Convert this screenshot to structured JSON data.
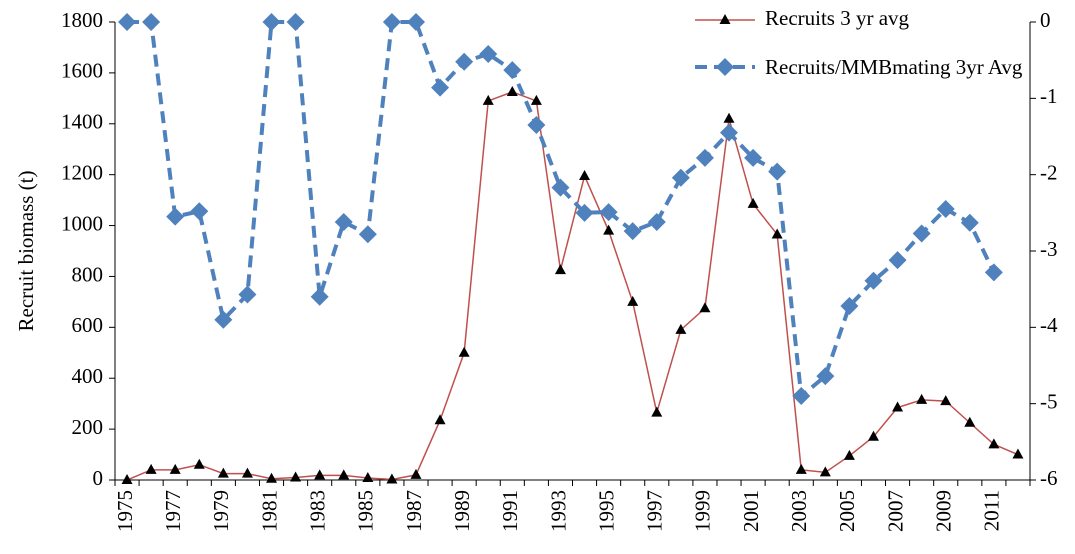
{
  "chart_data": {
    "type": "line",
    "ylabel": "Recruit biomass (t)",
    "categories": [
      "1975",
      null,
      "1977",
      null,
      "1979",
      null,
      "1981",
      null,
      "1983",
      null,
      "1985",
      null,
      "1987",
      null,
      "1989",
      null,
      "1991",
      null,
      "1993",
      null,
      "1995",
      null,
      "1997",
      null,
      "1999",
      null,
      "2001",
      null,
      "2003",
      null,
      "2005",
      null,
      "2007",
      null,
      "2009",
      null,
      "2011",
      null
    ],
    "series": [
      {
        "name": "Recruits 3 yr avg",
        "color": "#c0504d",
        "marker_color": "#000000",
        "values": [
          0,
          40,
          40,
          60,
          25,
          25,
          5,
          10,
          18,
          18,
          8,
          2,
          20,
          235,
          500,
          1490,
          1525,
          1490,
          825,
          1195,
          980,
          700,
          265,
          590,
          675,
          1420,
          1085,
          965,
          40,
          30,
          95,
          170,
          285,
          315,
          310,
          225,
          140,
          100
        ]
      },
      {
        "name": "Recruits/MMBmating 3yr Avg",
        "color": "#4f81bd",
        "axis": "y2",
        "values": [
          0,
          0,
          -2.55,
          -2.48,
          -3.9,
          -3.57,
          0,
          0,
          -3.6,
          -2.62,
          -2.78,
          0,
          0,
          -0.86,
          -0.52,
          -0.42,
          -0.63,
          -1.35,
          -2.17,
          -2.5,
          -2.49,
          -2.74,
          -2.62,
          -2.04,
          -1.78,
          -1.45,
          -1.78,
          -1.96,
          -4.9,
          -4.64,
          -3.72,
          -3.39,
          -3.12,
          -2.77,
          -2.45,
          -2.63,
          -3.28,
          null
        ]
      }
    ],
    "ylim": [
      0,
      1800
    ],
    "yticks": [
      0,
      200,
      400,
      600,
      800,
      1000,
      1200,
      1400,
      1600,
      1800
    ],
    "y2lim": [
      -6,
      0
    ],
    "y2ticks": [
      -6,
      -5,
      -4,
      -3,
      -2,
      -1,
      0
    ],
    "grid": false,
    "legend": "upper right"
  }
}
